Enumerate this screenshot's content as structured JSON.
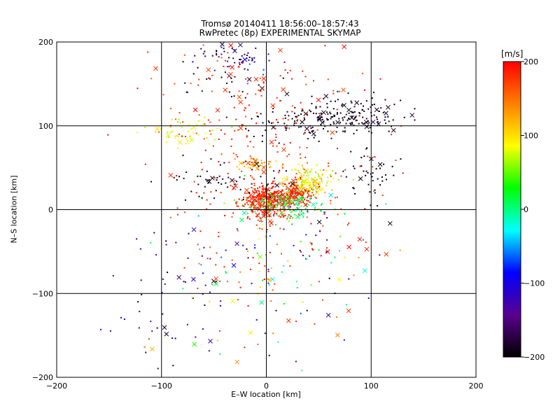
{
  "chart_data": {
    "type": "scatter",
    "title": "Tromsø 20140411 18:56:00–18:57:43",
    "subtitle": "RwPretec (8p) EXPERIMENTAL SKYMAP",
    "xlabel": "E–W location [km]",
    "ylabel": "N–S location [km]",
    "xlim": [
      -200,
      200
    ],
    "ylim": [
      -200,
      200
    ],
    "x_ticks": [
      "-200",
      "-100",
      "0",
      "100",
      "200"
    ],
    "y_ticks": [
      "-200",
      "-100",
      "0",
      "100",
      "200"
    ],
    "grid": true,
    "colorbar": {
      "label": "[m/s]",
      "min": -200,
      "max": 200,
      "ticks": [
        "200",
        "100",
        "0",
        "-100",
        "-200"
      ],
      "colormap": [
        "#000000",
        "#5a0090",
        "#0000ff",
        "#00ffff",
        "#00ff00",
        "#ffff00",
        "#ff8000",
        "#ff0000"
      ]
    },
    "markers": [
      "dot",
      "cross"
    ],
    "clusters": [
      {
        "cx": 0,
        "cy": 10,
        "sx": 12,
        "sy": 10,
        "n": 380,
        "vmin": 170,
        "vmax": 200
      },
      {
        "cx": 30,
        "cy": 20,
        "sx": 8,
        "sy": 6,
        "n": 150,
        "vmin": 170,
        "vmax": 200
      },
      {
        "cx": 15,
        "cy": 5,
        "sx": 18,
        "sy": 10,
        "n": 140,
        "vmin": -20,
        "vmax": 60
      },
      {
        "cx": 40,
        "cy": 35,
        "sx": 12,
        "sy": 8,
        "n": 130,
        "vmin": 60,
        "vmax": 130
      },
      {
        "cx": -10,
        "cy": 55,
        "sx": 10,
        "sy": 4,
        "n": 45,
        "vmin": 100,
        "vmax": 170
      },
      {
        "cx": 80,
        "cy": 110,
        "sx": 25,
        "sy": 12,
        "n": 160,
        "vmin": -200,
        "vmax": -180
      },
      {
        "cx": 30,
        "cy": 105,
        "sx": 25,
        "sy": 10,
        "n": 70,
        "vmin": -200,
        "vmax": -180
      },
      {
        "cx": -40,
        "cy": 170,
        "sx": 25,
        "sy": 20,
        "n": 60,
        "vmin": -200,
        "vmax": -170
      },
      {
        "cx": -20,
        "cy": 180,
        "sx": 20,
        "sy": 12,
        "n": 25,
        "vmin": -140,
        "vmax": -60
      },
      {
        "cx": -40,
        "cy": 35,
        "sx": 25,
        "sy": 10,
        "n": 60,
        "vmin": -200,
        "vmax": -180
      },
      {
        "cx": 100,
        "cy": 40,
        "sx": 12,
        "sy": 15,
        "n": 40,
        "vmin": -200,
        "vmax": -190
      },
      {
        "cx": -75,
        "cy": 90,
        "sx": 20,
        "sy": 10,
        "n": 50,
        "vmin": 60,
        "vmax": 110
      },
      {
        "cx": 0,
        "cy": 60,
        "sx": 50,
        "sy": 80,
        "n": 320,
        "vmin": 160,
        "vmax": 200
      },
      {
        "cx": -90,
        "cy": -110,
        "sx": 25,
        "sy": 50,
        "n": 50,
        "vmin": -200,
        "vmax": -100
      },
      {
        "cx": -10,
        "cy": -60,
        "sx": 40,
        "sy": 30,
        "n": 60,
        "vmin": -200,
        "vmax": 200
      },
      {
        "cx": 60,
        "cy": -40,
        "sx": 35,
        "sy": 30,
        "n": 50,
        "vmin": -200,
        "vmax": 200
      },
      {
        "cx": 0,
        "cy": -130,
        "sx": 50,
        "sy": 40,
        "n": 40,
        "vmin": -200,
        "vmax": 200
      }
    ]
  }
}
